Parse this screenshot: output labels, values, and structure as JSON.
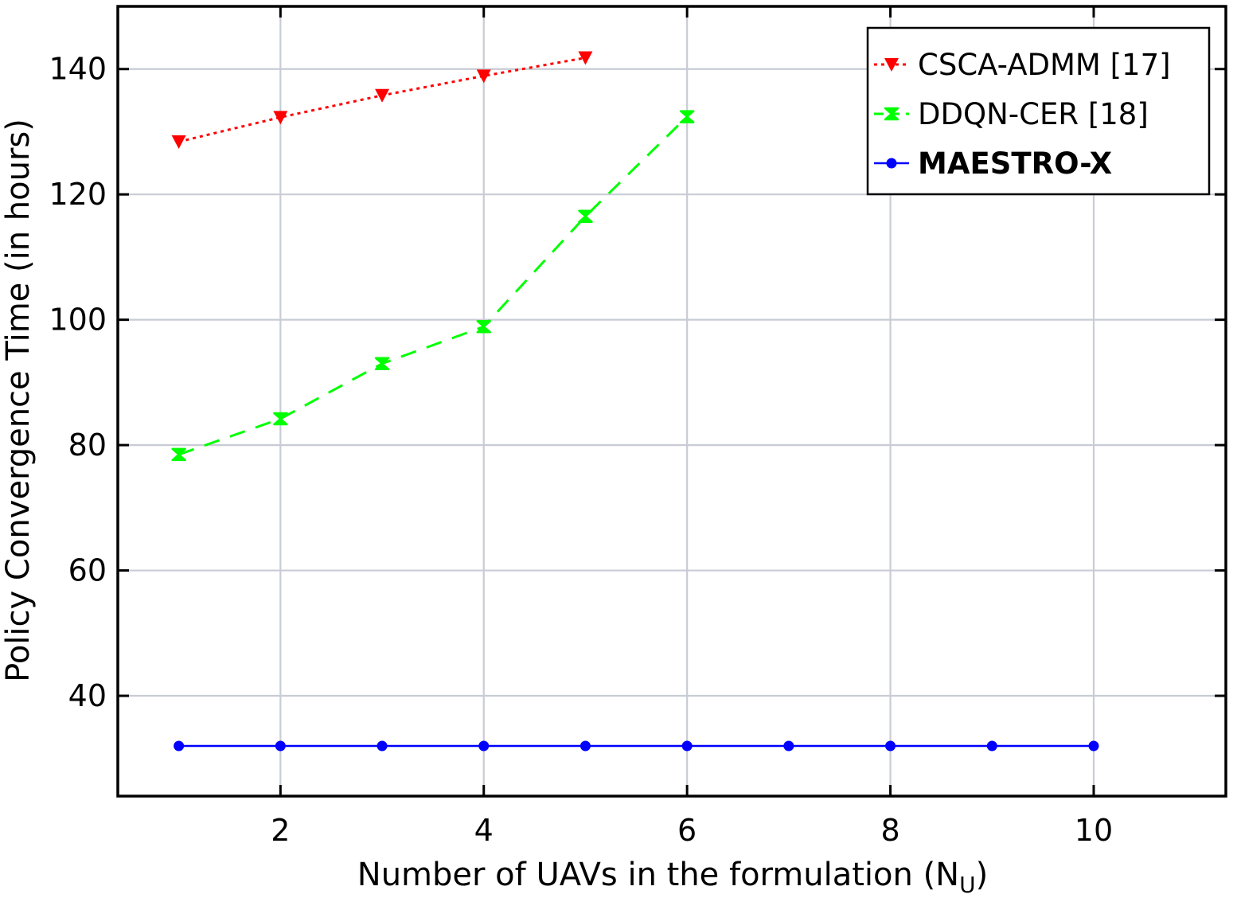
{
  "chart_data": {
    "type": "line",
    "xlabel": "Number of UAVs in the formulation (N",
    "xlabel_sub": "U",
    "xlabel_close": ")",
    "ylabel": "Policy Convergence Time (in hours)",
    "xlim": [
      0.4,
      11.3
    ],
    "ylim": [
      24,
      150
    ],
    "x_ticks": [
      2,
      4,
      6,
      8,
      10
    ],
    "y_ticks": [
      40,
      60,
      80,
      100,
      120,
      140
    ],
    "x_tick_labels": [
      "2",
      "4",
      "6",
      "8",
      "10"
    ],
    "y_tick_labels": [
      "40",
      "60",
      "80",
      "100",
      "120",
      "140"
    ],
    "grid": true,
    "legend_position": "top-right",
    "series": [
      {
        "name": "CSCA-ADMM [17]",
        "color": "#ff0000",
        "line_style": "dotted",
        "marker": "triangle-down",
        "bold": false,
        "x": [
          1,
          2,
          3,
          4,
          5
        ],
        "y": [
          128.4,
          132.3,
          135.8,
          138.9,
          141.8
        ]
      },
      {
        "name": "DDQN-CER [18]",
        "color": "#00ff00",
        "line_style": "dashed",
        "marker": "bowtie",
        "bold": false,
        "x": [
          1,
          2,
          3,
          4,
          5,
          6
        ],
        "y": [
          78.5,
          84.2,
          93.0,
          98.9,
          116.5,
          132.4
        ]
      },
      {
        "name": "MAESTRO-X",
        "color": "#0000ff",
        "line_style": "solid",
        "marker": "circle",
        "bold": true,
        "x": [
          1,
          2,
          3,
          4,
          5,
          6,
          7,
          8,
          9,
          10
        ],
        "y": [
          32,
          32,
          32,
          32,
          32,
          32,
          32,
          32,
          32,
          32
        ]
      }
    ]
  }
}
